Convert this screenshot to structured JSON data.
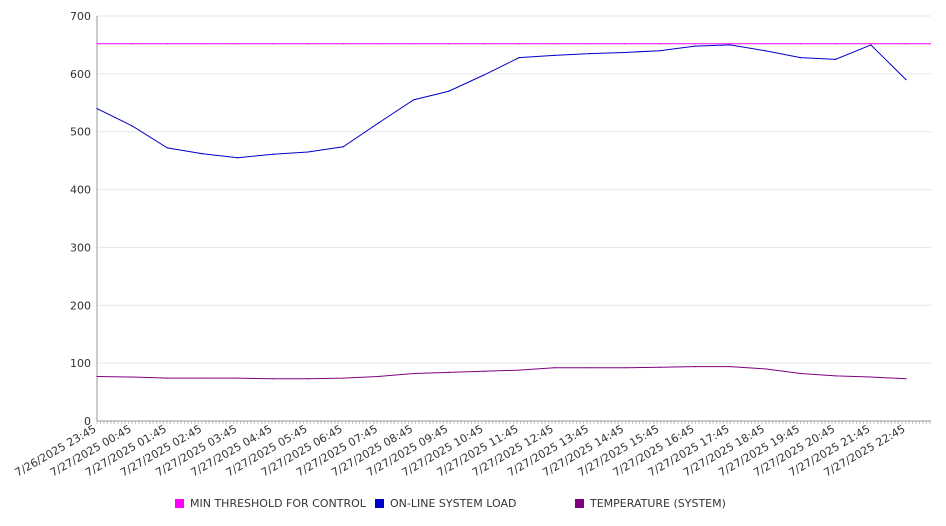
{
  "colors": {
    "threshold": "#ff00ff",
    "load": "#0000cc",
    "temperature": "#800080",
    "grid": "#e6e6e6",
    "axis": "#999999"
  },
  "legend": [
    {
      "label": "MIN THRESHOLD FOR CONTROL",
      "color": "#ff00ff",
      "swatch": "square"
    },
    {
      "label": "ON-LINE SYSTEM LOAD",
      "color": "#0000cc",
      "swatch": "square"
    },
    {
      "label": "TEMPERATURE (SYSTEM)",
      "color": "#800080",
      "swatch": "square"
    }
  ],
  "chart_data": {
    "type": "line",
    "title": "",
    "xlabel": "",
    "ylabel": "",
    "ylim": [
      0,
      700
    ],
    "yticks": [
      0,
      100,
      200,
      300,
      400,
      500,
      600,
      700
    ],
    "grid": "horizontal",
    "legend_position": "bottom",
    "x": [
      "7/26/2025 23:45",
      "7/27/2025 00:45",
      "7/27/2025 01:45",
      "7/27/2025 02:45",
      "7/27/2025 03:45",
      "7/27/2025 04:45",
      "7/27/2025 05:45",
      "7/27/2025 06:45",
      "7/27/2025 07:45",
      "7/27/2025 08:45",
      "7/27/2025 09:45",
      "7/27/2025 10:45",
      "7/27/2025 11:45",
      "7/27/2025 12:45",
      "7/27/2025 13:45",
      "7/27/2025 14:45",
      "7/27/2025 15:45",
      "7/27/2025 16:45",
      "7/27/2025 17:45",
      "7/27/2025 18:45",
      "7/27/2025 19:45",
      "7/27/2025 20:45",
      "7/27/2025 21:45",
      "7/27/2025 22:45"
    ],
    "series": [
      {
        "name": "MIN THRESHOLD FOR CONTROL",
        "color": "#ff00ff",
        "values": [
          652,
          652,
          652,
          652,
          652,
          652,
          652,
          652,
          652,
          652,
          652,
          652,
          652,
          652,
          652,
          652,
          652,
          652,
          652,
          652,
          652,
          652,
          652,
          652
        ]
      },
      {
        "name": "ON-LINE SYSTEM LOAD",
        "color": "#0000cc",
        "values": [
          540,
          510,
          472,
          462,
          455,
          461,
          465,
          474,
          515,
          555,
          570,
          598,
          628,
          632,
          635,
          637,
          640,
          648,
          650,
          640,
          628,
          625,
          650,
          590
        ]
      },
      {
        "name": "TEMPERATURE (SYSTEM)",
        "color": "#800080",
        "values": [
          77,
          76,
          74,
          74,
          74,
          73,
          73,
          74,
          77,
          82,
          84,
          86,
          88,
          92,
          92,
          92,
          93,
          94,
          94,
          90,
          82,
          78,
          76,
          73
        ]
      }
    ]
  }
}
